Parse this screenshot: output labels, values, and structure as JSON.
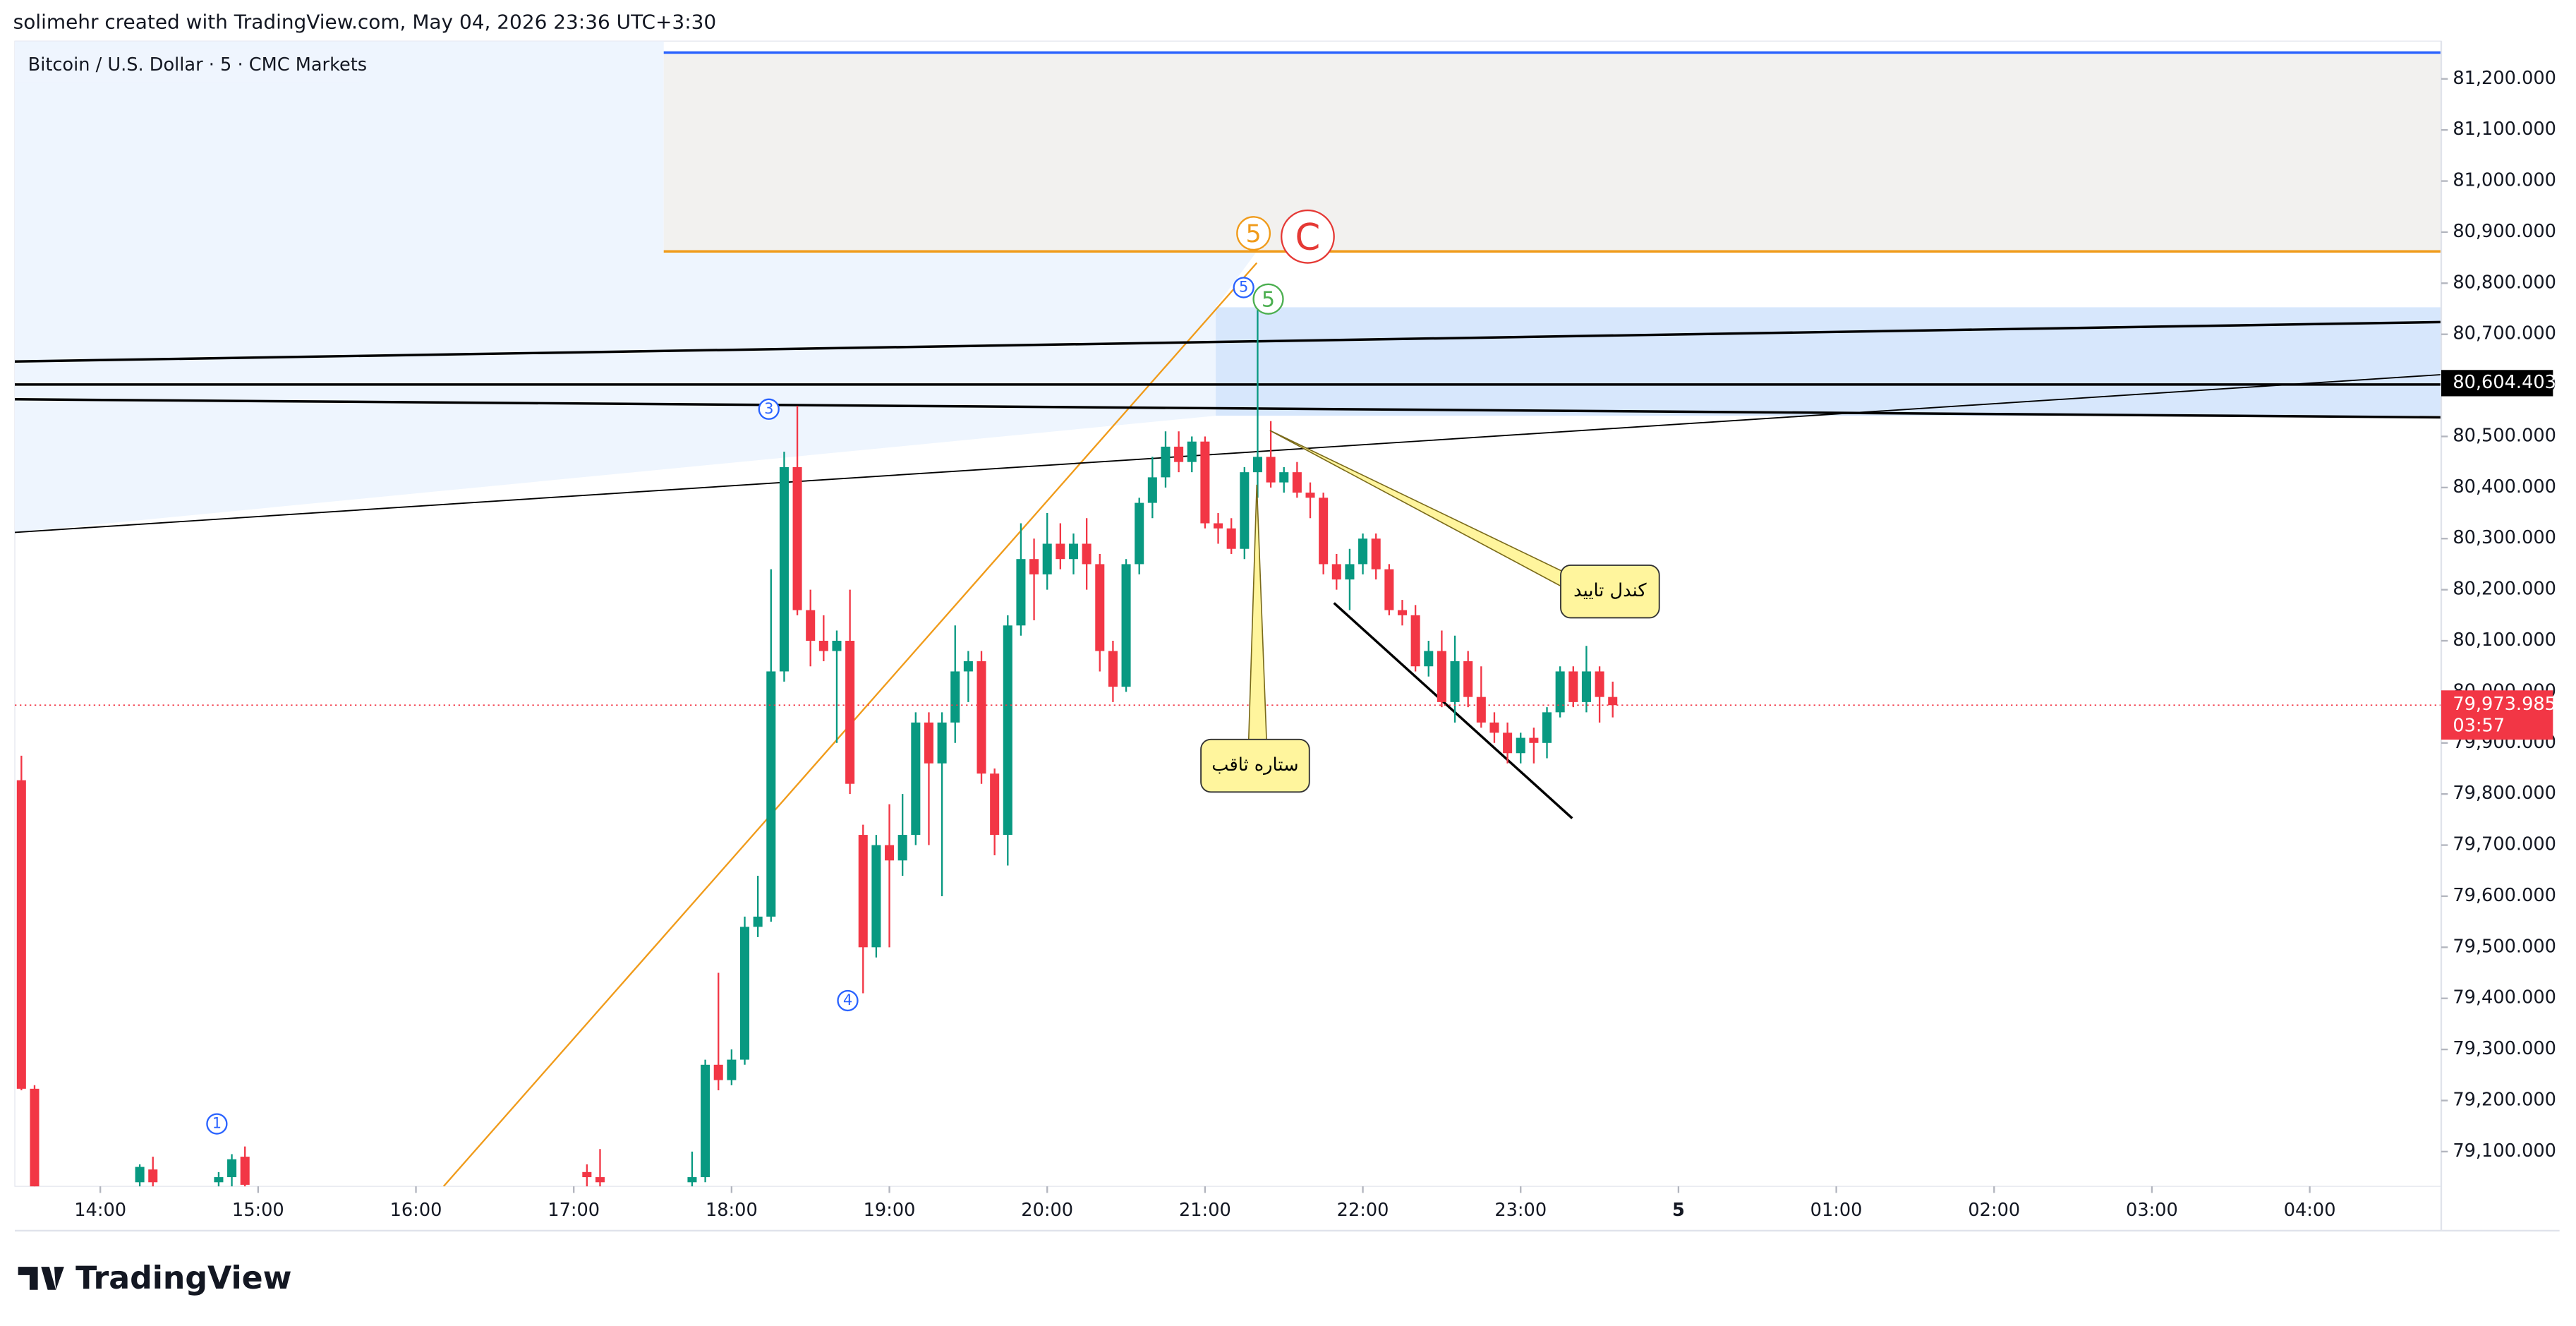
{
  "header": "solimehr created with TradingView.com, May 04, 2026 23:36 UTC+3:30",
  "brand": "TradingView",
  "chart_data": {
    "type": "candlestick",
    "title": "Bitcoin / U.S. Dollar · 5 · CMC Markets",
    "up_color": "#089981",
    "down_color": "#f23645",
    "xlim": [
      807.5,
      1730
    ],
    "ylim": [
      79032,
      81274
    ],
    "xticks": [
      {
        "value": 840,
        "label": "14:00"
      },
      {
        "value": 900,
        "label": "15:00"
      },
      {
        "value": 960,
        "label": "16:00"
      },
      {
        "value": 1020,
        "label": "17:00"
      },
      {
        "value": 1080,
        "label": "18:00"
      },
      {
        "value": 1140,
        "label": "19:00"
      },
      {
        "value": 1200,
        "label": "20:00"
      },
      {
        "value": 1260,
        "label": "21:00"
      },
      {
        "value": 1320,
        "label": "22:00"
      },
      {
        "value": 1380,
        "label": "23:00"
      },
      {
        "value": 1440,
        "label": "5"
      },
      {
        "value": 1500,
        "label": "01:00"
      },
      {
        "value": 1560,
        "label": "02:00"
      },
      {
        "value": 1620,
        "label": "03:00"
      },
      {
        "value": 1680,
        "label": "04:00"
      }
    ],
    "yticks": [
      {
        "value": 79100,
        "label": "79,100.000"
      },
      {
        "value": 79200,
        "label": "79,200.000"
      },
      {
        "value": 79300,
        "label": "79,300.000"
      },
      {
        "value": 79400,
        "label": "79,400.000"
      },
      {
        "value": 79500,
        "label": "79,500.000"
      },
      {
        "value": 79600,
        "label": "79,600.000"
      },
      {
        "value": 79700,
        "label": "79,700.000"
      },
      {
        "value": 79800,
        "label": "79,800.000"
      },
      {
        "value": 79900,
        "label": "79,900.000"
      },
      {
        "value": 80000,
        "label": "80,000.000"
      },
      {
        "value": 80100,
        "label": "80,100.000"
      },
      {
        "value": 80200,
        "label": "80,200.000"
      },
      {
        "value": 80300,
        "label": "80,300.000"
      },
      {
        "value": 80400,
        "label": "80,400.000"
      },
      {
        "value": 80500,
        "label": "80,500.000"
      },
      {
        "value": 80600,
        "label": "80,600.000"
      },
      {
        "value": 80700,
        "label": "80,700.000"
      },
      {
        "value": 80800,
        "label": "80,800.000"
      },
      {
        "value": 80900,
        "label": "80,900.000"
      },
      {
        "value": 81000,
        "label": "81,000.000"
      },
      {
        "value": 81100,
        "label": "81,100.000"
      },
      {
        "value": 81200,
        "label": "81,200.000"
      }
    ],
    "last_price": {
      "value": 79973.985,
      "label": "79,973.985"
    },
    "countdown": "03:57",
    "marked_price": {
      "value": 80604.403,
      "label": "80,604.403"
    },
    "x": [
      "13:30",
      "13:35",
      "14:15",
      "14:20",
      "14:45",
      "14:50",
      "14:55",
      "17:05",
      "17:10",
      "17:45",
      "17:50",
      "17:55",
      "18:00",
      "18:05",
      "18:10",
      "18:15",
      "18:20",
      "18:25",
      "18:30",
      "18:35",
      "18:40",
      "18:45",
      "18:50",
      "18:55",
      "19:00",
      "19:05",
      "19:10",
      "19:15",
      "19:20",
      "19:25",
      "19:30",
      "19:35",
      "19:40",
      "19:45",
      "19:50",
      "19:55",
      "20:00",
      "20:05",
      "20:10",
      "20:15",
      "20:20",
      "20:25",
      "20:30",
      "20:35",
      "20:40",
      "20:45",
      "20:50",
      "20:55",
      "21:00",
      "21:05",
      "21:10",
      "21:15",
      "21:20",
      "21:25",
      "21:30",
      "21:35",
      "21:40",
      "21:45",
      "21:50",
      "21:55",
      "22:00",
      "22:05",
      "22:10",
      "22:15",
      "22:20",
      "22:25",
      "22:30",
      "22:35",
      "22:40",
      "22:45",
      "22:50",
      "22:55",
      "23:00",
      "23:05",
      "23:10",
      "23:15",
      "23:20",
      "23:25",
      "23:30",
      "23:35"
    ],
    "ohlc": [
      [
        79827,
        79875,
        79220,
        79223
      ],
      [
        79223,
        79230,
        78900,
        78950
      ],
      [
        79040,
        79075,
        79000,
        79070
      ],
      [
        79065,
        79090,
        79000,
        79040
      ],
      [
        79040,
        79060,
        79000,
        79050
      ],
      [
        79050,
        79095,
        79030,
        79085
      ],
      [
        79090,
        79110,
        79000,
        79035
      ],
      [
        79060,
        79075,
        79000,
        79050
      ],
      [
        79050,
        79105,
        79000,
        79040
      ],
      [
        79040,
        79100,
        79000,
        79050
      ],
      [
        79050,
        79280,
        79040,
        79270
      ],
      [
        79270,
        79450,
        79220,
        79240
      ],
      [
        79240,
        79300,
        79230,
        79280
      ],
      [
        79280,
        79560,
        79270,
        79540
      ],
      [
        79540,
        79640,
        79520,
        79560
      ],
      [
        79560,
        80240,
        79550,
        80040
      ],
      [
        80040,
        80470,
        80020,
        80440
      ],
      [
        80440,
        80560,
        80150,
        80160
      ],
      [
        80160,
        80200,
        80050,
        80100
      ],
      [
        80100,
        80150,
        80060,
        80080
      ],
      [
        80080,
        80120,
        79900,
        80100
      ],
      [
        80100,
        80200,
        79800,
        79820
      ],
      [
        79720,
        79740,
        79410,
        79500
      ],
      [
        79500,
        79720,
        79480,
        79700
      ],
      [
        79700,
        79780,
        79500,
        79670
      ],
      [
        79670,
        79800,
        79640,
        79720
      ],
      [
        79720,
        79960,
        79700,
        79940
      ],
      [
        79940,
        79960,
        79700,
        79860
      ],
      [
        79860,
        79960,
        79600,
        79940
      ],
      [
        79940,
        80130,
        79900,
        80040
      ],
      [
        80040,
        80080,
        79980,
        80060
      ],
      [
        80060,
        80080,
        79820,
        79840
      ],
      [
        79840,
        79850,
        79680,
        79720
      ],
      [
        79720,
        80150,
        79660,
        80130
      ],
      [
        80130,
        80330,
        80110,
        80260
      ],
      [
        80260,
        80300,
        80140,
        80230
      ],
      [
        80230,
        80350,
        80200,
        80290
      ],
      [
        80290,
        80330,
        80240,
        80260
      ],
      [
        80260,
        80310,
        80230,
        80290
      ],
      [
        80290,
        80340,
        80200,
        80250
      ],
      [
        80250,
        80270,
        80040,
        80080
      ],
      [
        80080,
        80100,
        79980,
        80010
      ],
      [
        80010,
        80260,
        80000,
        80250
      ],
      [
        80250,
        80380,
        80230,
        80370
      ],
      [
        80370,
        80460,
        80340,
        80420
      ],
      [
        80420,
        80510,
        80400,
        80480
      ],
      [
        80480,
        80510,
        80430,
        80450
      ],
      [
        80450,
        80500,
        80430,
        80490
      ],
      [
        80490,
        80500,
        80320,
        80330
      ],
      [
        80330,
        80350,
        80290,
        80320
      ],
      [
        80320,
        80340,
        80270,
        80280
      ],
      [
        80280,
        80440,
        80260,
        80430
      ],
      [
        80430,
        80760,
        80380,
        80460
      ],
      [
        80460,
        80530,
        80400,
        80410
      ],
      [
        80410,
        80440,
        80390,
        80430
      ],
      [
        80430,
        80450,
        80380,
        80390
      ],
      [
        80390,
        80410,
        80340,
        80380
      ],
      [
        80380,
        80390,
        80230,
        80250
      ],
      [
        80250,
        80270,
        80200,
        80220
      ],
      [
        80220,
        80280,
        80160,
        80250
      ],
      [
        80250,
        80310,
        80230,
        80300
      ],
      [
        80300,
        80310,
        80220,
        80240
      ],
      [
        80240,
        80250,
        80150,
        80160
      ],
      [
        80160,
        80180,
        80130,
        80150
      ],
      [
        80150,
        80170,
        80040,
        80050
      ],
      [
        80050,
        80100,
        80030,
        80080
      ],
      [
        80080,
        80120,
        79970,
        79980
      ],
      [
        79980,
        80110,
        79940,
        80060
      ],
      [
        80060,
        80080,
        79970,
        79990
      ],
      [
        79990,
        80050,
        79930,
        79940
      ],
      [
        79940,
        79960,
        79900,
        79920
      ],
      [
        79920,
        79940,
        79860,
        79880
      ],
      [
        79880,
        79920,
        79860,
        79910
      ],
      [
        79910,
        79930,
        79860,
        79900
      ],
      [
        79900,
        79970,
        79870,
        79960
      ],
      [
        79960,
        80050,
        79950,
        80040
      ],
      [
        80040,
        80050,
        79970,
        79980
      ],
      [
        79980,
        80090,
        79960,
        80040
      ],
      [
        80040,
        80050,
        79940,
        79990
      ],
      [
        79990,
        80020,
        79950,
        79973.985
      ]
    ],
    "annotations": [
      "کندل تایید",
      "ستاره ثاقب"
    ],
    "wave_labels": [
      "1",
      "3",
      "4",
      "5",
      "5",
      "5",
      "C"
    ]
  }
}
